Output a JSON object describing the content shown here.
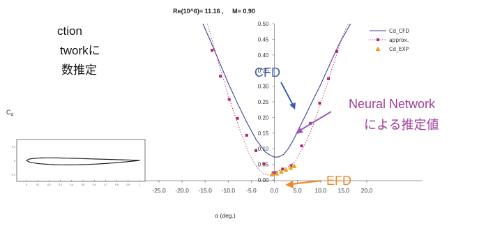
{
  "slide": {
    "text_fragments": [
      "ction",
      "tworkに",
      "数推定"
    ]
  },
  "chart_data": {
    "type": "line",
    "title": "Re(10^6)= 11.16 ,     M= 0.90",
    "xlabel": "α (deg.)",
    "ylabel": "Cd",
    "xlim": [
      -25,
      23
    ],
    "ylim": [
      0,
      0.5
    ],
    "x_ticks": [
      "-25.0",
      "-20.0",
      "-15.0",
      "-10.0",
      "-5.0",
      "0.0",
      "5.0",
      "10.0",
      "15.0",
      "20.0"
    ],
    "x_tick_values": [
      -25,
      -20,
      -15,
      -10,
      -5,
      0,
      5,
      10,
      15,
      20
    ],
    "y_ticks": [
      "0.00",
      "0.05",
      "0.10",
      "0.15",
      "0.20",
      "0.25",
      "0.30",
      "0.35",
      "0.40",
      "0.45",
      "0.50"
    ],
    "y_tick_values": [
      0,
      0.05,
      0.1,
      0.15,
      0.2,
      0.25,
      0.3,
      0.35,
      0.4,
      0.45,
      0.5
    ],
    "legend_position": "top-right",
    "series": [
      {
        "name": "Cd_CFD",
        "color": "#3b3f96",
        "style": "solid",
        "x": [
          -15.5,
          -14,
          -12,
          -10,
          -8,
          -6,
          -4,
          -2,
          -1,
          0,
          1,
          2,
          3,
          4,
          5,
          6,
          7,
          8,
          10,
          12,
          14,
          16.5
        ],
        "y": [
          0.5,
          0.45,
          0.38,
          0.31,
          0.245,
          0.185,
          0.13,
          0.09,
          0.08,
          0.073,
          0.074,
          0.082,
          0.1,
          0.125,
          0.155,
          0.185,
          0.215,
          0.245,
          0.305,
          0.37,
          0.435,
          0.5
        ]
      },
      {
        "name": "approx.",
        "color": "#b3246b",
        "style": "dotted-square",
        "x": [
          -14.5,
          -13,
          -11.5,
          -10,
          -8.5,
          -7,
          -5.5,
          -4,
          -2.5,
          -1,
          0,
          0.5,
          1.5,
          2.5,
          3.5,
          4.5,
          5.5,
          7,
          8.5,
          10,
          11.5,
          13,
          14.5,
          16
        ],
        "y": [
          0.5,
          0.42,
          0.345,
          0.27,
          0.205,
          0.14,
          0.085,
          0.045,
          0.02,
          0.015,
          0.02,
          0.025,
          0.035,
          0.04,
          0.045,
          0.06,
          0.085,
          0.125,
          0.18,
          0.245,
          0.31,
          0.38,
          0.45,
          0.5
        ],
        "markers": {
          "x": [
            -13.5,
            -11.7,
            -9.8,
            -8,
            -6,
            -4,
            -2.3,
            -0.3,
            0.4,
            1.8,
            3.6,
            5.9,
            7.8,
            9.8,
            11.7,
            13.5
          ],
          "y": [
            0.415,
            0.332,
            0.258,
            0.197,
            0.143,
            0.094,
            0.052,
            0.023,
            0.024,
            0.035,
            0.046,
            0.109,
            0.181,
            0.246,
            0.324,
            0.411
          ]
        }
      },
      {
        "name": "Cd_EXP",
        "color": "#e8a21d",
        "style": "triangle",
        "x": [
          -0.5,
          0.5,
          1.5,
          2.5,
          3.5,
          4.3
        ],
        "y": [
          0.018,
          0.021,
          0.027,
          0.033,
          0.039,
          0.045
        ]
      }
    ],
    "annotations": [
      {
        "text": "CFD",
        "color": "#3a5bb0"
      },
      {
        "text": "Neural Network",
        "color": "#a23d9a"
      },
      {
        "text": "による推定値",
        "color": "#a23d9a"
      },
      {
        "text": "EFD",
        "color": "#ef8a2b"
      }
    ],
    "inset": {
      "ylabel": "Cd",
      "x_ticks": [
        "0",
        "0.1",
        "0.2",
        "0.3",
        "0.4",
        "0.5",
        "0.6",
        "0.7",
        "0.8",
        "0.9",
        "1"
      ],
      "y_ticks": [
        "0.1",
        "0",
        "-0.1"
      ]
    }
  }
}
